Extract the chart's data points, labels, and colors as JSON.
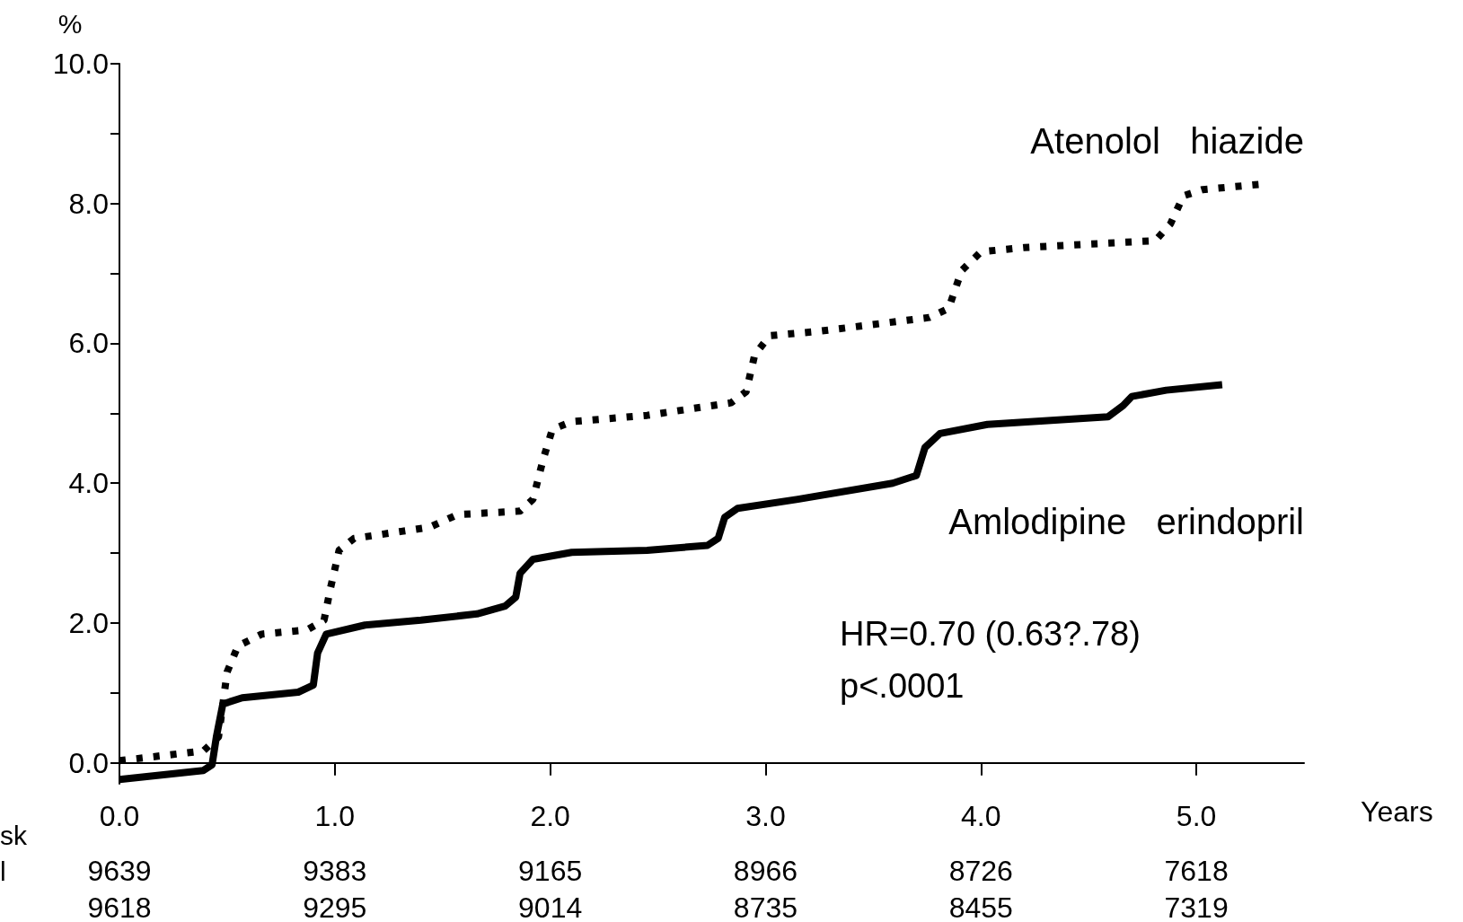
{
  "chart_data": {
    "type": "line",
    "xlabel": "Years",
    "ylabel": "%",
    "xlim": [
      0,
      5.5
    ],
    "ylim": [
      -0.3,
      10
    ],
    "xticks": [
      {
        "value": 0,
        "label": "0.0"
      },
      {
        "value": 1,
        "label": "1.0"
      },
      {
        "value": 2,
        "label": "2.0"
      },
      {
        "value": 3,
        "label": "3.0"
      },
      {
        "value": 4,
        "label": "4.0"
      },
      {
        "value": 5,
        "label": "5.0"
      }
    ],
    "yticks": [
      {
        "value": 0,
        "label": "0.0"
      },
      {
        "value": 1,
        "label": null
      },
      {
        "value": 2,
        "label": "2.0"
      },
      {
        "value": 3,
        "label": null
      },
      {
        "value": 4,
        "label": "4.0"
      },
      {
        "value": 5,
        "label": null
      },
      {
        "value": 6,
        "label": "6.0"
      },
      {
        "value": 7,
        "label": null
      },
      {
        "value": 8,
        "label": "8.0"
      },
      {
        "value": 9,
        "label": null
      },
      {
        "value": 10,
        "label": "10.0"
      }
    ],
    "grid": false,
    "legend": false,
    "marker": "none",
    "series": [
      {
        "name": "Atenolol   hiazide",
        "color": "#000000",
        "line_style": "dotted",
        "x": [
          0,
          0.39,
          0.46,
          0.5,
          0.55,
          0.66,
          0.87,
          0.95,
          0.98,
          1.02,
          1.09,
          1.31,
          1.44,
          1.57,
          1.86,
          1.92,
          1.97,
          2.01,
          2.1,
          2.45,
          2.84,
          2.91,
          2.95,
          3.02,
          3.24,
          3.76,
          3.85,
          3.91,
          4.0,
          4.2,
          4.81,
          4.88,
          4.94,
          5.03,
          5.31
        ],
        "values": [
          0.03,
          0.17,
          0.37,
          1.3,
          1.67,
          1.84,
          1.9,
          2.04,
          2.5,
          3.04,
          3.21,
          3.31,
          3.37,
          3.55,
          3.6,
          3.77,
          4.37,
          4.77,
          4.88,
          4.97,
          5.15,
          5.31,
          5.84,
          6.11,
          6.17,
          6.37,
          6.5,
          7.04,
          7.31,
          7.37,
          7.47,
          7.71,
          8.11,
          8.2,
          8.28
        ]
      },
      {
        "name": "Amlodipine   erindopril",
        "color": "#000000",
        "line_style": "solid",
        "x": [
          0,
          0.39,
          0.43,
          0.45,
          0.48,
          0.57,
          0.83,
          0.9,
          0.92,
          0.96,
          1.14,
          1.4,
          1.66,
          1.79,
          1.84,
          1.86,
          1.92,
          2.1,
          2.45,
          2.73,
          2.78,
          2.81,
          2.87,
          3.15,
          3.59,
          3.7,
          3.74,
          3.81,
          4.03,
          4.59,
          4.66,
          4.7,
          4.86,
          5.12
        ],
        "values": [
          -0.24,
          -0.11,
          -0.03,
          0.37,
          0.84,
          0.93,
          1.01,
          1.11,
          1.57,
          1.84,
          1.97,
          2.04,
          2.13,
          2.24,
          2.37,
          2.71,
          2.91,
          3.01,
          3.04,
          3.11,
          3.21,
          3.51,
          3.64,
          3.77,
          4.0,
          4.11,
          4.51,
          4.71,
          4.84,
          4.95,
          5.11,
          5.24,
          5.33,
          5.41
        ]
      }
    ],
    "annotations": [
      "HR=0.70 (0.63?.78)",
      "p<.0001",
      "sk",
      "l",
      "9639",
      "9383",
      "9165",
      "8966",
      "8726",
      "7618",
      "9618",
      "9295",
      "9014",
      "8735",
      "8455",
      "7319"
    ]
  }
}
